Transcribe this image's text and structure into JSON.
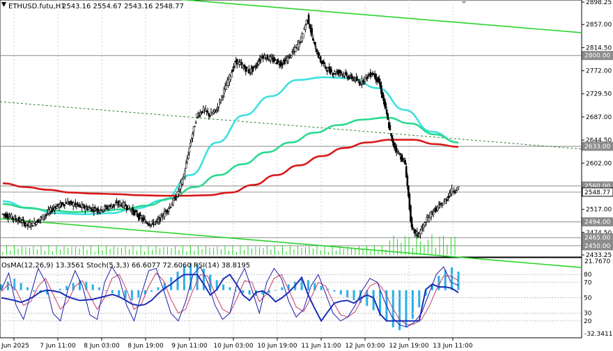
{
  "header": {
    "symbol": "ETHUSD.futu,H1",
    "ohlc": "2543.16 2554.67 2543.16 2548.77"
  },
  "indicator_header": "OsMA(12,26,9) 13.3561  Stoch(5,3,3) 66.6077 72.6060  RSI(14) 38.8195",
  "colors": {
    "candles": "#000000",
    "ema_red": "#d91818",
    "ema_green": "#2ad98e",
    "ema_cyan": "#3de0e0",
    "channel": "#2bd42b",
    "osma": "#29aee8",
    "stoch_main": "#1a1aa8",
    "stoch_signal": "#c43a6b",
    "rsi": "#1b2db5"
  },
  "chart_data": {
    "type": "candlestick",
    "symbol": "ETHUSD.futu",
    "timeframe": "H1",
    "price_ylim": [
      2433.25,
      2898.25
    ],
    "price_ticks": [
      "2898.25",
      "2857.00",
      "2814.50",
      "2772.00",
      "2729.50",
      "2687.00",
      "2644.50",
      "2602.00",
      "2517.00",
      "2474.50",
      "2433.25"
    ],
    "level_tags": [
      {
        "label": "2800.00",
        "value": 2800.0,
        "style": "level"
      },
      {
        "label": "2633.00",
        "value": 2633.0,
        "style": "level"
      },
      {
        "label": "2560.00",
        "value": 2560.0,
        "style": "level"
      },
      {
        "label": "2548.77",
        "value": 2548.77,
        "style": "current"
      },
      {
        "label": "2494.00",
        "value": 2494.0,
        "style": "level"
      },
      {
        "label": "2465.00",
        "value": 2465.0,
        "style": "level"
      },
      {
        "label": "2450.00",
        "value": 2450.0,
        "style": "level"
      }
    ],
    "time_labels": [
      "Jun 2025",
      "7 Jun 11:00",
      "8 Jun 03:00",
      "8 Jun 19:00",
      "9 Jun 11:00",
      "10 Jun 03:00",
      "10 Jun 19:00",
      "11 Jun 11:00",
      "12 Jun 03:00",
      "12 Jun 19:00",
      "13 Jun 11:00"
    ],
    "price_path": [
      2505,
      2500,
      2495,
      2488,
      2492,
      2500,
      2510,
      2520,
      2525,
      2530,
      2526,
      2522,
      2520,
      2518,
      2516,
      2520,
      2524,
      2528,
      2524,
      2515,
      2505,
      2495,
      2490,
      2495,
      2510,
      2525,
      2545,
      2580,
      2640,
      2690,
      2700,
      2690,
      2700,
      2730,
      2760,
      2790,
      2780,
      2770,
      2780,
      2800,
      2795,
      2790,
      2785,
      2795,
      2810,
      2830,
      2870,
      2820,
      2790,
      2775,
      2768,
      2770,
      2762,
      2758,
      2750,
      2760,
      2768,
      2750,
      2700,
      2640,
      2620,
      2600,
      2480,
      2470,
      2490,
      2510,
      2520,
      2530,
      2550,
      2555,
      2549
    ],
    "ema_red": [
      2565,
      2558,
      2553,
      2548,
      2546,
      2545,
      2543,
      2542,
      2542,
      2543,
      2548,
      2562,
      2580,
      2598,
      2615,
      2630,
      2640,
      2645,
      2645,
      2637,
      2632
    ],
    "ema_green": [
      2527,
      2520,
      2515,
      2512,
      2514,
      2517,
      2524,
      2537,
      2558,
      2580,
      2600,
      2622,
      2640,
      2658,
      2672,
      2682,
      2686,
      2675,
      2655,
      2640
    ],
    "ema_cyan": [
      2532,
      2519,
      2510,
      2508,
      2510,
      2519,
      2534,
      2580,
      2640,
      2690,
      2725,
      2755,
      2760,
      2758,
      2740,
      2700,
      2660,
      2640
    ],
    "channel_upper_line": [
      [
        2900,
        2830
      ],
      [
        250,
        830
      ]
    ],
    "osma_hist": [
      4,
      6,
      8,
      5,
      2,
      -1,
      -2,
      -3,
      -1,
      1,
      3,
      5,
      7,
      6,
      4,
      2,
      0,
      -2,
      -4,
      -6,
      -7,
      -5,
      -3,
      -1,
      2,
      5,
      9,
      13,
      17,
      19,
      18,
      15,
      11,
      7,
      4,
      2,
      0,
      -2,
      -3,
      -4,
      -3,
      -2,
      0,
      2,
      4,
      6,
      8,
      7,
      5,
      3,
      1,
      -1,
      -3,
      -5,
      -7,
      -9,
      -11,
      -14,
      -18,
      -22,
      -26,
      -28,
      -26,
      -20,
      -12,
      -4,
      4,
      10,
      14,
      16,
      13
    ],
    "stoch_main": [
      60,
      82,
      40,
      22,
      55,
      88,
      70,
      30,
      20,
      60,
      85,
      65,
      28,
      22,
      70,
      90,
      75,
      40,
      20,
      55,
      85,
      88,
      60,
      30,
      20,
      45,
      80,
      90,
      70,
      40,
      22,
      30,
      70,
      88,
      60,
      30,
      70,
      88,
      75,
      45,
      25,
      35,
      65,
      80,
      55,
      30,
      20,
      25,
      40,
      60,
      75,
      70,
      45,
      25,
      15,
      12,
      18,
      30,
      55,
      80,
      90,
      70,
      66
    ],
    "stoch_signal": [
      58,
      68,
      60,
      40,
      45,
      65,
      75,
      55,
      35,
      45,
      65,
      72,
      52,
      35,
      50,
      75,
      80,
      60,
      35,
      42,
      65,
      82,
      72,
      48,
      30,
      35,
      60,
      80,
      78,
      55,
      35,
      30,
      50,
      72,
      70,
      45,
      55,
      75,
      80,
      60,
      38,
      32,
      50,
      70,
      65,
      45,
      28,
      25,
      32,
      50,
      65,
      70,
      58,
      38,
      22,
      15,
      16,
      22,
      38,
      60,
      78,
      78,
      72
    ]
  },
  "osma_axis": [
    "21.7670",
    "-32.3411"
  ],
  "stoch_axis": [
    "80",
    "70",
    "50",
    "30",
    "20"
  ]
}
